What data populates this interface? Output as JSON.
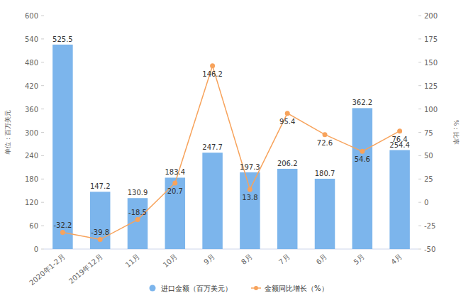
{
  "chart_data": {
    "type": "bar",
    "categories": [
      "2020年1-2月",
      "2019年12月",
      "11月",
      "10月",
      "9月",
      "8月",
      "7月",
      "6月",
      "5月",
      "4月"
    ],
    "series": [
      {
        "name": "进口金额（百万美元）",
        "type": "bar",
        "color": "#7cb5ec",
        "values": [
          525.5,
          147.2,
          130.9,
          183.4,
          247.7,
          197.3,
          206.2,
          180.7,
          362.2,
          254.4
        ]
      },
      {
        "name": "金额同比增长（%）",
        "type": "line",
        "axis": "y2",
        "color": "#f7a35c",
        "marker": "circle",
        "values": [
          -32.2,
          -39.8,
          -18.5,
          20.7,
          146.2,
          13.8,
          95.4,
          72.6,
          54.6,
          76.4
        ]
      }
    ],
    "y_label": "单位：百万美元",
    "y2_label": "%：比率",
    "ylim": [
      0,
      600
    ],
    "yticks": [
      0,
      60,
      120,
      180,
      240,
      300,
      360,
      420,
      480,
      540,
      600
    ],
    "y2lim": [
      -50,
      200
    ],
    "y2ticks": [
      -50,
      -25,
      0,
      25,
      50,
      75,
      100,
      125,
      150,
      175,
      200
    ],
    "grid": false,
    "data_labels": true,
    "legend": "bottom"
  }
}
